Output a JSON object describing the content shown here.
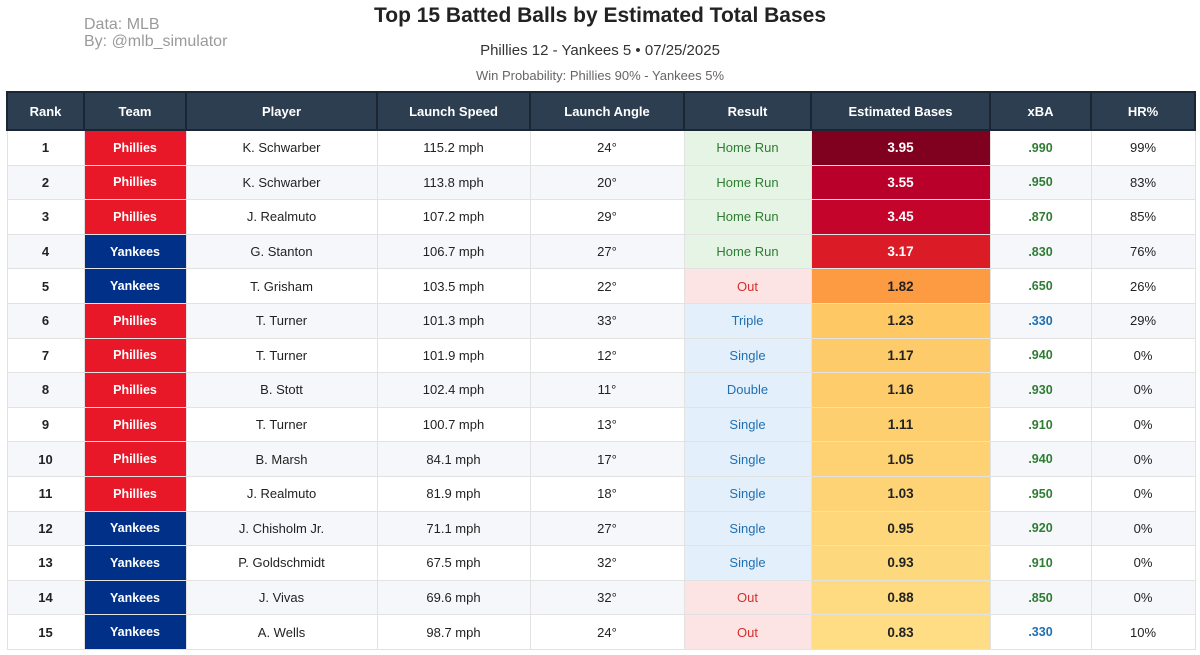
{
  "header": {
    "credit_line1": "Data: MLB",
    "credit_line2": "By: @mlb_simulator",
    "title": "Top 15 Batted Balls by Estimated Total Bases",
    "subtitle": "Phillies 12 - Yankees 5  •  07/25/2025",
    "win_probability": "Win Probability: Phillies 90% - Yankees 5%"
  },
  "colors": {
    "phillies": "#e81828",
    "yankees": "#003087",
    "header_bg": "#2c3e50",
    "xba_green": "#2e7d32",
    "xba_blue": "#1f6fb2"
  },
  "columns": [
    "Rank",
    "Team",
    "Player",
    "Launch Speed",
    "Launch Angle",
    "Result",
    "Estimated Bases",
    "xBA",
    "HR%"
  ],
  "rows": [
    {
      "rank": "1",
      "team": "Phillies",
      "player": "K. Schwarber",
      "speed": "115.2 mph",
      "angle": "24°",
      "result": "Home Run",
      "bases": "3.95",
      "xba": ".990",
      "hr": "99%",
      "bases_bg": "#800020",
      "bases_fg": "#ffffff",
      "xba_color": "#2e7d32"
    },
    {
      "rank": "2",
      "team": "Phillies",
      "player": "K. Schwarber",
      "speed": "113.8 mph",
      "angle": "20°",
      "result": "Home Run",
      "bases": "3.55",
      "xba": ".950",
      "hr": "83%",
      "bases_bg": "#b8002a",
      "bases_fg": "#ffffff",
      "xba_color": "#2e7d32"
    },
    {
      "rank": "3",
      "team": "Phillies",
      "player": "J. Realmuto",
      "speed": "107.2 mph",
      "angle": "29°",
      "result": "Home Run",
      "bases": "3.45",
      "xba": ".870",
      "hr": "85%",
      "bases_bg": "#c4042b",
      "bases_fg": "#ffffff",
      "xba_color": "#2e7d32"
    },
    {
      "rank": "4",
      "team": "Yankees",
      "player": "G. Stanton",
      "speed": "106.7 mph",
      "angle": "27°",
      "result": "Home Run",
      "bases": "3.17",
      "xba": ".830",
      "hr": "76%",
      "bases_bg": "#db1c26",
      "bases_fg": "#ffffff",
      "xba_color": "#2e7d32"
    },
    {
      "rank": "5",
      "team": "Yankees",
      "player": "T. Grisham",
      "speed": "103.5 mph",
      "angle": "22°",
      "result": "Out",
      "bases": "1.82",
      "xba": ".650",
      "hr": "26%",
      "bases_bg": "#fd9b43",
      "bases_fg": "#222222",
      "xba_color": "#2e7d32"
    },
    {
      "rank": "6",
      "team": "Phillies",
      "player": "T. Turner",
      "speed": "101.3 mph",
      "angle": "33°",
      "result": "Triple",
      "bases": "1.23",
      "xba": ".330",
      "hr": "29%",
      "bases_bg": "#fec865",
      "bases_fg": "#222222",
      "xba_color": "#1f6fb2"
    },
    {
      "rank": "7",
      "team": "Phillies",
      "player": "T. Turner",
      "speed": "101.9 mph",
      "angle": "12°",
      "result": "Single",
      "bases": "1.17",
      "xba": ".940",
      "hr": "0%",
      "bases_bg": "#fecb6a",
      "bases_fg": "#222222",
      "xba_color": "#2e7d32"
    },
    {
      "rank": "8",
      "team": "Phillies",
      "player": "B. Stott",
      "speed": "102.4 mph",
      "angle": "11°",
      "result": "Double",
      "bases": "1.16",
      "xba": ".930",
      "hr": "0%",
      "bases_bg": "#fecc6b",
      "bases_fg": "#222222",
      "xba_color": "#2e7d32"
    },
    {
      "rank": "9",
      "team": "Phillies",
      "player": "T. Turner",
      "speed": "100.7 mph",
      "angle": "13°",
      "result": "Single",
      "bases": "1.11",
      "xba": ".910",
      "hr": "0%",
      "bases_bg": "#fecf6f",
      "bases_fg": "#222222",
      "xba_color": "#2e7d32"
    },
    {
      "rank": "10",
      "team": "Phillies",
      "player": "B. Marsh",
      "speed": "84.1 mph",
      "angle": "17°",
      "result": "Single",
      "bases": "1.05",
      "xba": ".940",
      "hr": "0%",
      "bases_bg": "#fed273",
      "bases_fg": "#222222",
      "xba_color": "#2e7d32"
    },
    {
      "rank": "11",
      "team": "Phillies",
      "player": "J. Realmuto",
      "speed": "81.9 mph",
      "angle": "18°",
      "result": "Single",
      "bases": "1.03",
      "xba": ".950",
      "hr": "0%",
      "bases_bg": "#fed375",
      "bases_fg": "#222222",
      "xba_color": "#2e7d32"
    },
    {
      "rank": "12",
      "team": "Yankees",
      "player": "J. Chisholm Jr.",
      "speed": "71.1 mph",
      "angle": "27°",
      "result": "Single",
      "bases": "0.95",
      "xba": ".920",
      "hr": "0%",
      "bases_bg": "#fed77a",
      "bases_fg": "#222222",
      "xba_color": "#2e7d32"
    },
    {
      "rank": "13",
      "team": "Yankees",
      "player": "P. Goldschmidt",
      "speed": "67.5 mph",
      "angle": "32°",
      "result": "Single",
      "bases": "0.93",
      "xba": ".910",
      "hr": "0%",
      "bases_bg": "#fed87c",
      "bases_fg": "#222222",
      "xba_color": "#2e7d32"
    },
    {
      "rank": "14",
      "team": "Yankees",
      "player": "J. Vivas",
      "speed": "69.6 mph",
      "angle": "32°",
      "result": "Out",
      "bases": "0.88",
      "xba": ".850",
      "hr": "0%",
      "bases_bg": "#fedb80",
      "bases_fg": "#222222",
      "xba_color": "#2e7d32"
    },
    {
      "rank": "15",
      "team": "Yankees",
      "player": "A. Wells",
      "speed": "98.7 mph",
      "angle": "24°",
      "result": "Out",
      "bases": "0.83",
      "xba": ".330",
      "hr": "10%",
      "bases_bg": "#fedd84",
      "bases_fg": "#222222",
      "xba_color": "#1f6fb2"
    }
  ]
}
